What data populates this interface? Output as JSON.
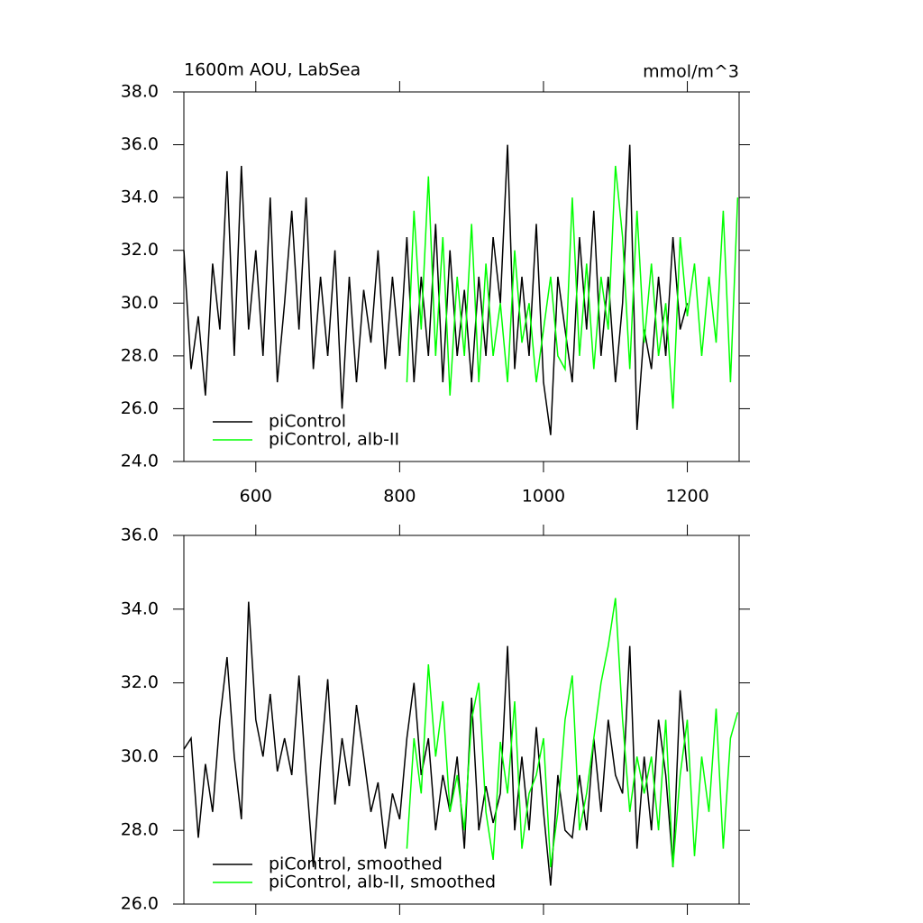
{
  "chart_data": [
    {
      "type": "line",
      "title": "1600m AOU, LabSea",
      "units": "mmol/m^3",
      "xlim": [
        500,
        1272
      ],
      "xticks": [
        600,
        800,
        1000,
        1200
      ],
      "show_xtick_labels": true,
      "ylim": [
        24,
        38
      ],
      "yticks": [
        {
          "value": 24,
          "label": "24.0"
        },
        {
          "value": 26,
          "label": "26.0"
        },
        {
          "value": 28,
          "label": "28.0"
        },
        {
          "value": 30,
          "label": "30.0"
        },
        {
          "value": 32,
          "label": "32.0"
        },
        {
          "value": 34,
          "label": "34.0"
        },
        {
          "value": 36,
          "label": "36.0"
        },
        {
          "value": 38,
          "label": "38.0"
        }
      ],
      "series": [
        {
          "name": "piControl",
          "color": "#000000",
          "x": [
            500,
            510,
            520,
            530,
            540,
            550,
            560,
            570,
            580,
            590,
            600,
            610,
            620,
            630,
            640,
            650,
            660,
            670,
            680,
            690,
            700,
            710,
            720,
            730,
            740,
            750,
            760,
            770,
            780,
            790,
            800,
            810,
            820,
            830,
            840,
            850,
            860,
            870,
            880,
            890,
            900,
            910,
            920,
            930,
            940,
            950,
            960,
            970,
            980,
            990,
            1000,
            1010,
            1020,
            1030,
            1040,
            1050,
            1060,
            1070,
            1080,
            1090,
            1100,
            1110,
            1120,
            1130,
            1140,
            1150,
            1160,
            1170,
            1180,
            1190,
            1200
          ],
          "values": [
            32,
            27.5,
            29.5,
            26.5,
            31.5,
            29,
            35,
            28,
            35.2,
            29,
            32,
            28,
            34,
            27,
            30,
            33.5,
            29,
            34,
            27.5,
            31,
            28,
            32,
            26,
            31,
            27,
            30.5,
            28.5,
            32,
            27.5,
            31,
            28,
            32.5,
            27,
            31,
            28,
            33,
            27,
            32,
            28,
            30.5,
            27,
            31,
            28,
            32.5,
            30,
            36,
            27.5,
            31,
            28,
            33,
            27,
            25,
            31,
            29,
            27,
            32.5,
            29,
            33.5,
            28,
            31,
            27,
            30,
            36,
            25.2,
            29,
            27.5,
            31,
            28,
            32.5,
            29,
            30
          ]
        },
        {
          "name": "piControl, alb-II",
          "color": "#00ff00",
          "x": [
            810,
            820,
            830,
            840,
            850,
            860,
            870,
            880,
            890,
            900,
            910,
            920,
            930,
            940,
            950,
            960,
            970,
            980,
            990,
            1000,
            1010,
            1020,
            1030,
            1040,
            1050,
            1060,
            1070,
            1080,
            1090,
            1100,
            1110,
            1120,
            1130,
            1140,
            1150,
            1160,
            1170,
            1180,
            1190,
            1200,
            1210,
            1220,
            1230,
            1240,
            1250,
            1260,
            1270
          ],
          "values": [
            27,
            33.5,
            29,
            34.8,
            28,
            32.5,
            26.5,
            31,
            28,
            33,
            27,
            31.5,
            28,
            30,
            27,
            32,
            28.5,
            30,
            27,
            29,
            31,
            28,
            27.5,
            34,
            28,
            31.5,
            27.5,
            31,
            29,
            35.2,
            32.5,
            27.5,
            33.5,
            28.5,
            31.5,
            28,
            30,
            26,
            32.5,
            29.5,
            31.5,
            28,
            31,
            28.5,
            33.5,
            27,
            34
          ]
        }
      ]
    },
    {
      "type": "line",
      "xlim": [
        500,
        1272
      ],
      "xticks": [
        600,
        800,
        1000,
        1200
      ],
      "show_xtick_labels": false,
      "ylim": [
        26,
        36
      ],
      "yticks": [
        {
          "value": 26,
          "label": "26.0"
        },
        {
          "value": 28,
          "label": "28.0"
        },
        {
          "value": 30,
          "label": "30.0"
        },
        {
          "value": 32,
          "label": "32.0"
        },
        {
          "value": 34,
          "label": "34.0"
        },
        {
          "value": 36,
          "label": "36.0"
        }
      ],
      "series": [
        {
          "name": "piControl, smoothed",
          "color": "#000000",
          "x": [
            500,
            510,
            520,
            530,
            540,
            550,
            560,
            570,
            580,
            590,
            600,
            610,
            620,
            630,
            640,
            650,
            660,
            670,
            680,
            690,
            700,
            710,
            720,
            730,
            740,
            750,
            760,
            770,
            780,
            790,
            800,
            810,
            820,
            830,
            840,
            850,
            860,
            870,
            880,
            890,
            900,
            910,
            920,
            930,
            940,
            950,
            960,
            970,
            980,
            990,
            1000,
            1010,
            1020,
            1030,
            1040,
            1050,
            1060,
            1070,
            1080,
            1090,
            1100,
            1110,
            1120,
            1130,
            1140,
            1150,
            1160,
            1170,
            1180,
            1190,
            1200
          ],
          "values": [
            30.2,
            30.5,
            27.8,
            29.8,
            28.5,
            31,
            32.7,
            30,
            28.3,
            34.2,
            31,
            30,
            31.7,
            29.6,
            30.5,
            29.5,
            32.2,
            29.5,
            27,
            29.8,
            32.1,
            28.7,
            30.5,
            29.2,
            31.4,
            30,
            28.5,
            29.3,
            27.5,
            29,
            28.3,
            30.5,
            32,
            29.5,
            30.5,
            28,
            29.5,
            28.5,
            30,
            27.5,
            31.6,
            28,
            29.2,
            28.2,
            29,
            33,
            28,
            30,
            28,
            30.8,
            28.5,
            26.5,
            29.5,
            28,
            27.8,
            29.5,
            28,
            30.5,
            28.5,
            31,
            29.5,
            29,
            33,
            27.5,
            30,
            28,
            31,
            29.5,
            27,
            31.8,
            29.6
          ]
        },
        {
          "name": "piControl, alb-II, smoothed",
          "color": "#00ff00",
          "x": [
            810,
            820,
            830,
            840,
            850,
            860,
            870,
            880,
            890,
            900,
            910,
            920,
            930,
            940,
            950,
            960,
            970,
            980,
            990,
            1000,
            1010,
            1020,
            1030,
            1040,
            1050,
            1060,
            1070,
            1080,
            1090,
            1100,
            1110,
            1120,
            1130,
            1140,
            1150,
            1160,
            1170,
            1180,
            1190,
            1200,
            1210,
            1220,
            1230,
            1240,
            1250,
            1260,
            1270
          ],
          "values": [
            27.5,
            30.5,
            29,
            32.5,
            30,
            31.5,
            28.5,
            29.5,
            28,
            31,
            32,
            28.5,
            27.2,
            30.4,
            29,
            31.5,
            27.5,
            29,
            29.5,
            30.5,
            27,
            28.5,
            31,
            32.2,
            28,
            29,
            30.5,
            32,
            33,
            34.3,
            31,
            28.5,
            30,
            29,
            30,
            28,
            31,
            27,
            29.5,
            31,
            27.3,
            30,
            28.5,
            31.3,
            27.5,
            30.5,
            31.2
          ]
        }
      ]
    }
  ]
}
